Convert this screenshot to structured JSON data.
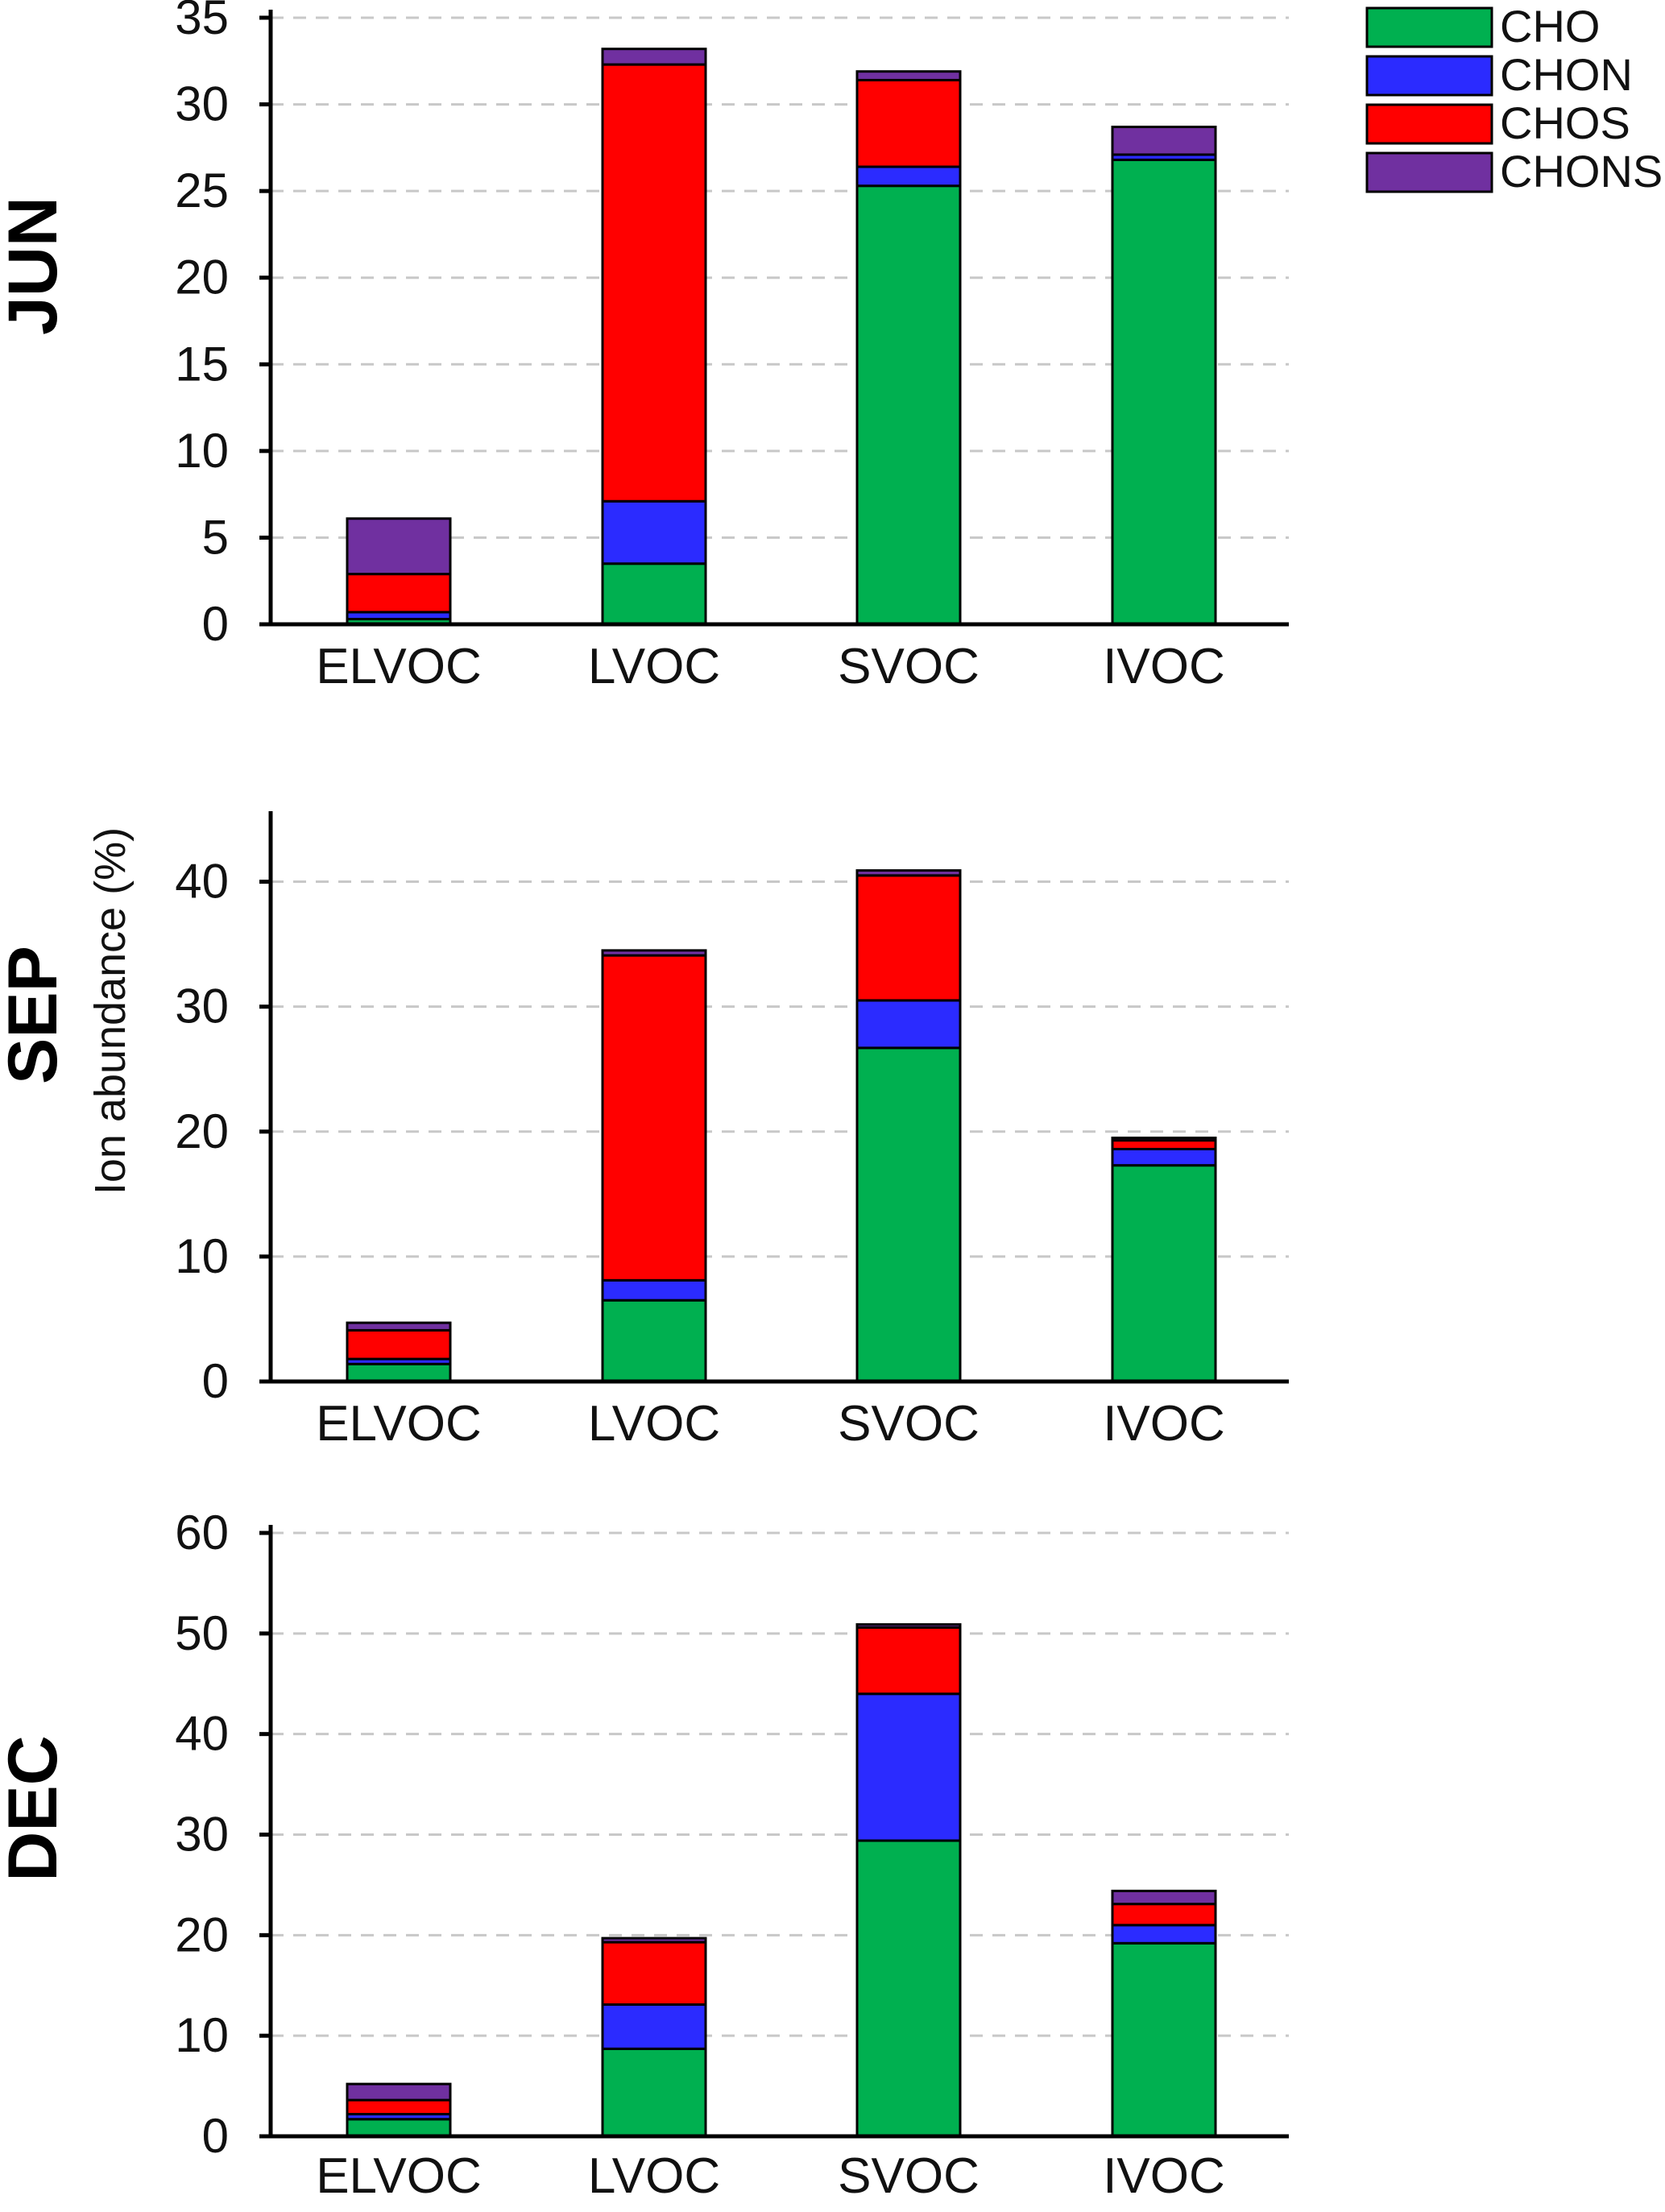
{
  "ylabel": "Ion abundance (%)",
  "legend": [
    {
      "name": "CHO",
      "color": "#00b050"
    },
    {
      "name": "CHON",
      "color": "#2b2bff"
    },
    {
      "name": "CHOS",
      "color": "#ff0000"
    },
    {
      "name": "CHONS",
      "color": "#7030a0"
    }
  ],
  "chart_data": [
    {
      "type": "bar",
      "stacked": true,
      "panel_label": "JUN",
      "categories": [
        "ELVOC",
        "LVOC",
        "SVOC",
        "IVOC"
      ],
      "ylim": [
        0,
        35
      ],
      "yticks": [
        0,
        5,
        10,
        15,
        20,
        25,
        30,
        35
      ],
      "grid": true,
      "series": [
        {
          "name": "CHO",
          "values": [
            0.3,
            3.5,
            25.3,
            26.8
          ]
        },
        {
          "name": "CHON",
          "values": [
            0.4,
            3.6,
            1.1,
            0.3
          ]
        },
        {
          "name": "CHOS",
          "values": [
            2.2,
            25.2,
            5.0,
            0.0
          ]
        },
        {
          "name": "CHONS",
          "values": [
            3.2,
            0.9,
            0.5,
            1.6
          ]
        }
      ]
    },
    {
      "type": "bar",
      "stacked": true,
      "panel_label": "SEP",
      "categories": [
        "ELVOC",
        "LVOC",
        "SVOC",
        "IVOC"
      ],
      "ylim": [
        0,
        45
      ],
      "yticks": [
        0,
        10,
        20,
        30,
        40
      ],
      "grid": true,
      "series": [
        {
          "name": "CHO",
          "values": [
            1.4,
            6.5,
            26.7,
            17.3
          ]
        },
        {
          "name": "CHON",
          "values": [
            0.4,
            1.6,
            3.8,
            1.3
          ]
        },
        {
          "name": "CHOS",
          "values": [
            2.3,
            26.0,
            10.0,
            0.7
          ]
        },
        {
          "name": "CHONS",
          "values": [
            0.6,
            0.4,
            0.4,
            0.2
          ]
        }
      ]
    },
    {
      "type": "bar",
      "stacked": true,
      "panel_label": "DEC",
      "categories": [
        "ELVOC",
        "LVOC",
        "SVOC",
        "IVOC"
      ],
      "ylim": [
        0,
        60
      ],
      "yticks": [
        0,
        10,
        20,
        30,
        40,
        50,
        60
      ],
      "grid": true,
      "series": [
        {
          "name": "CHO",
          "values": [
            1.7,
            8.7,
            29.4,
            19.2
          ]
        },
        {
          "name": "CHON",
          "values": [
            0.5,
            4.4,
            14.6,
            1.8
          ]
        },
        {
          "name": "CHOS",
          "values": [
            1.4,
            6.2,
            6.6,
            2.1
          ]
        },
        {
          "name": "CHONS",
          "values": [
            1.6,
            0.4,
            0.3,
            1.3
          ]
        }
      ]
    }
  ]
}
